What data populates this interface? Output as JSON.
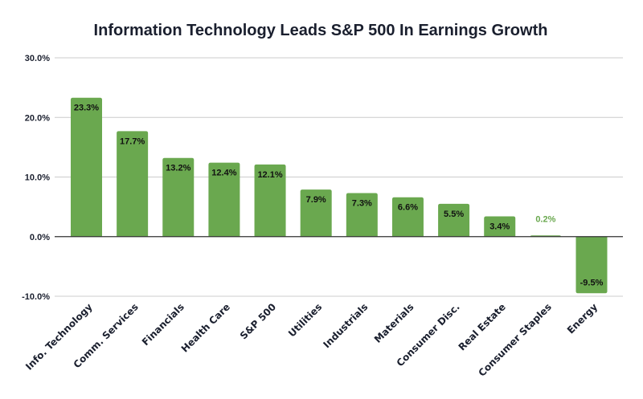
{
  "chart_data": {
    "type": "bar",
    "title": "Information Technology Leads S&P 500 In Earnings Growth",
    "xlabel": "",
    "ylabel": "",
    "categories": [
      "Info. Technology",
      "Comm. Services",
      "Financials",
      "Health Care",
      "S&P 500",
      "Utilities",
      "Industrials",
      "Materials",
      "Consumer Disc.",
      "Real Estate",
      "Consumer Staples",
      "Energy"
    ],
    "values": [
      23.3,
      17.7,
      13.2,
      12.4,
      12.1,
      7.9,
      7.3,
      6.6,
      5.5,
      3.4,
      0.2,
      -9.5
    ],
    "data_labels": [
      "23.3%",
      "17.7%",
      "13.2%",
      "12.4%",
      "12.1%",
      "7.9%",
      "7.3%",
      "6.6%",
      "5.5%",
      "3.4%",
      "0.2%",
      "-9.5%"
    ],
    "ylim": [
      -10,
      30
    ],
    "yticks": [
      30,
      20,
      10,
      0,
      -10
    ],
    "ytick_labels": [
      "30.0%",
      "20.0%",
      "10.0%",
      "0.0%",
      "-10.0%"
    ],
    "grid": true,
    "legend": "none",
    "colors": {
      "bar": "#6aa84f",
      "label_inside": "#111111",
      "label_outside": "#6aa84f",
      "grid": "#cccccc",
      "zero_line": "#333333",
      "text": "#1a1f2e"
    }
  }
}
